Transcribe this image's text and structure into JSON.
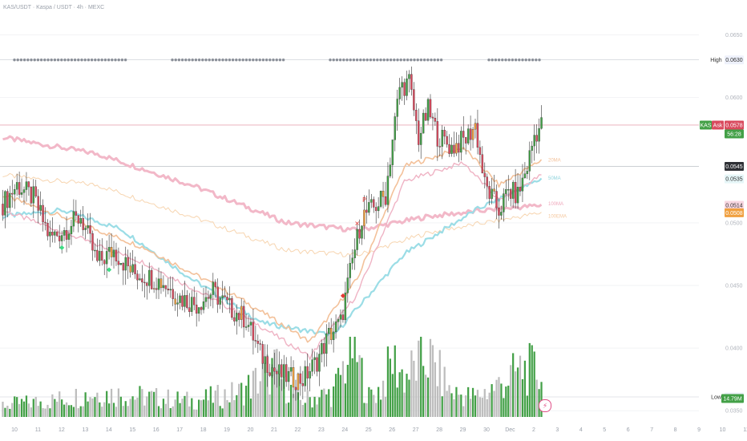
{
  "title": "KAS/USDT · Kaspa / USDT · 4h · MEXC",
  "colors": {
    "up": "#43a047",
    "down": "#d94a5e",
    "orange": "#f0a040",
    "ma20": "#f3c19a",
    "ma50": "#9bdde6",
    "ma100": "#f2b8c8",
    "ema100": "#f7d5b0",
    "volume_up": "#43a047",
    "volume_down": "#bdbdbd"
  },
  "y_axis": {
    "min": 0.0345,
    "max": 0.0665,
    "ticks": [
      "0.0650",
      "0.0600",
      "0.0500",
      "0.0450",
      "0.0400",
      "0.0350"
    ]
  },
  "x_axis": {
    "labels": [
      "10",
      "11",
      "12",
      "13",
      "14",
      "15",
      "16",
      "17",
      "18",
      "19",
      "20",
      "21",
      "22",
      "23",
      "24",
      "25",
      "26",
      "27",
      "28",
      "29",
      "30",
      "Dec",
      "2",
      "3",
      "4",
      "5",
      "6",
      "7",
      "8",
      "9",
      "10",
      "11"
    ]
  },
  "price_labels": {
    "high": {
      "label": "High",
      "value": "0.0630"
    },
    "low": {
      "label": "Low",
      "value": "0.0361"
    },
    "ask": {
      "symbol": "KAS",
      "label": "Ask",
      "value": "0.0578",
      "countdown": "56:28"
    },
    "level_dark": "0.0545",
    "ma50": "0.0535",
    "ma100": "0.0514",
    "ema": "0.0508",
    "volume": "14.79M"
  },
  "ma_labels": {
    "ma20": "20MA",
    "ma50": "50MA",
    "ma100": "100MA",
    "ema100": "100EMA"
  },
  "chart_data": {
    "type": "candlestick",
    "timeframe": "4h",
    "x": [
      "10",
      "11",
      "12",
      "13",
      "14",
      "15",
      "16",
      "17",
      "18",
      "19",
      "20",
      "21",
      "22",
      "23",
      "24",
      "25",
      "26",
      "27",
      "28",
      "29",
      "30",
      "Dec",
      "2",
      "3"
    ],
    "y_range": [
      0.0345,
      0.0665
    ],
    "high": 0.063,
    "low": 0.0361,
    "current": 0.0578,
    "anchor_closes": [
      [
        0,
        0.0515
      ],
      [
        6,
        0.053
      ],
      [
        13,
        0.052
      ],
      [
        20,
        0.0488
      ],
      [
        26,
        0.0494
      ],
      [
        33,
        0.0505
      ],
      [
        40,
        0.0468
      ],
      [
        47,
        0.0478
      ],
      [
        55,
        0.046
      ],
      [
        60,
        0.0458
      ],
      [
        68,
        0.0452
      ],
      [
        75,
        0.044
      ],
      [
        82,
        0.0435
      ],
      [
        89,
        0.0445
      ],
      [
        96,
        0.0432
      ],
      [
        103,
        0.0423
      ],
      [
        109,
        0.0395
      ],
      [
        116,
        0.038
      ],
      [
        122,
        0.0376
      ],
      [
        127,
        0.0375
      ],
      [
        133,
        0.039
      ],
      [
        138,
        0.041
      ],
      [
        143,
        0.042
      ],
      [
        148,
        0.047
      ],
      [
        152,
        0.0505
      ],
      [
        157,
        0.0512
      ],
      [
        162,
        0.0522
      ],
      [
        165,
        0.0567
      ],
      [
        168,
        0.0608
      ],
      [
        172,
        0.0612
      ],
      [
        176,
        0.0568
      ],
      [
        180,
        0.059
      ],
      [
        184,
        0.057
      ],
      [
        190,
        0.056
      ],
      [
        196,
        0.0567
      ],
      [
        200,
        0.0578
      ],
      [
        204,
        0.053
      ],
      [
        210,
        0.051
      ],
      [
        214,
        0.0525
      ],
      [
        218,
        0.0522
      ],
      [
        222,
        0.0545
      ],
      [
        225,
        0.057
      ],
      [
        228,
        0.0578
      ]
    ],
    "ma_anchors": {
      "ma20": [
        [
          0,
          0.0522
        ],
        [
          25,
          0.0505
        ],
        [
          60,
          0.048
        ],
        [
          100,
          0.044
        ],
        [
          130,
          0.0405
        ],
        [
          150,
          0.0455
        ],
        [
          170,
          0.0545
        ],
        [
          195,
          0.056
        ],
        [
          210,
          0.053
        ],
        [
          228,
          0.055
        ]
      ],
      "ma50": [
        [
          0,
          0.0505
        ],
        [
          25,
          0.051
        ],
        [
          50,
          0.0495
        ],
        [
          80,
          0.0455
        ],
        [
          110,
          0.042
        ],
        [
          140,
          0.041
        ],
        [
          170,
          0.0475
        ],
        [
          200,
          0.051
        ],
        [
          228,
          0.0535
        ]
      ],
      "ma100": [
        [
          0,
          0.0568
        ],
        [
          40,
          0.0555
        ],
        [
          80,
          0.053
        ],
        [
          120,
          0.05
        ],
        [
          150,
          0.0494
        ],
        [
          180,
          0.0505
        ],
        [
          210,
          0.0511
        ],
        [
          228,
          0.0514
        ]
      ],
      "ema100": [
        [
          0,
          0.0538
        ],
        [
          40,
          0.053
        ],
        [
          80,
          0.0505
        ],
        [
          120,
          0.0478
        ],
        [
          150,
          0.0474
        ],
        [
          180,
          0.0492
        ],
        [
          210,
          0.0502
        ],
        [
          228,
          0.0508
        ]
      ]
    },
    "volume_range": [
      0,
      20
    ],
    "volume_anchors": [
      [
        0,
        3
      ],
      [
        20,
        4
      ],
      [
        40,
        6
      ],
      [
        60,
        5
      ],
      [
        80,
        4
      ],
      [
        100,
        6
      ],
      [
        115,
        12
      ],
      [
        125,
        4
      ],
      [
        140,
        6
      ],
      [
        148,
        18
      ],
      [
        155,
        5
      ],
      [
        160,
        7
      ],
      [
        165,
        14
      ],
      [
        170,
        10
      ],
      [
        180,
        15
      ],
      [
        190,
        6
      ],
      [
        200,
        5
      ],
      [
        210,
        8
      ],
      [
        220,
        12
      ],
      [
        228,
        11
      ]
    ],
    "markers": [
      {
        "index": 25,
        "symbol": "◆",
        "color": "#3ddc84",
        "position": "below"
      },
      {
        "index": 45,
        "symbol": "◆",
        "color": "#3ddc84",
        "position": "below"
      },
      {
        "index": 144,
        "symbol": "◆",
        "color": "#e53935",
        "position": "above"
      },
      {
        "index": 150,
        "symbol": "✕",
        "color": "#e53935",
        "position": "above"
      },
      {
        "index": 153,
        "symbol": "P",
        "color": "#e53935",
        "position": "above"
      }
    ]
  }
}
